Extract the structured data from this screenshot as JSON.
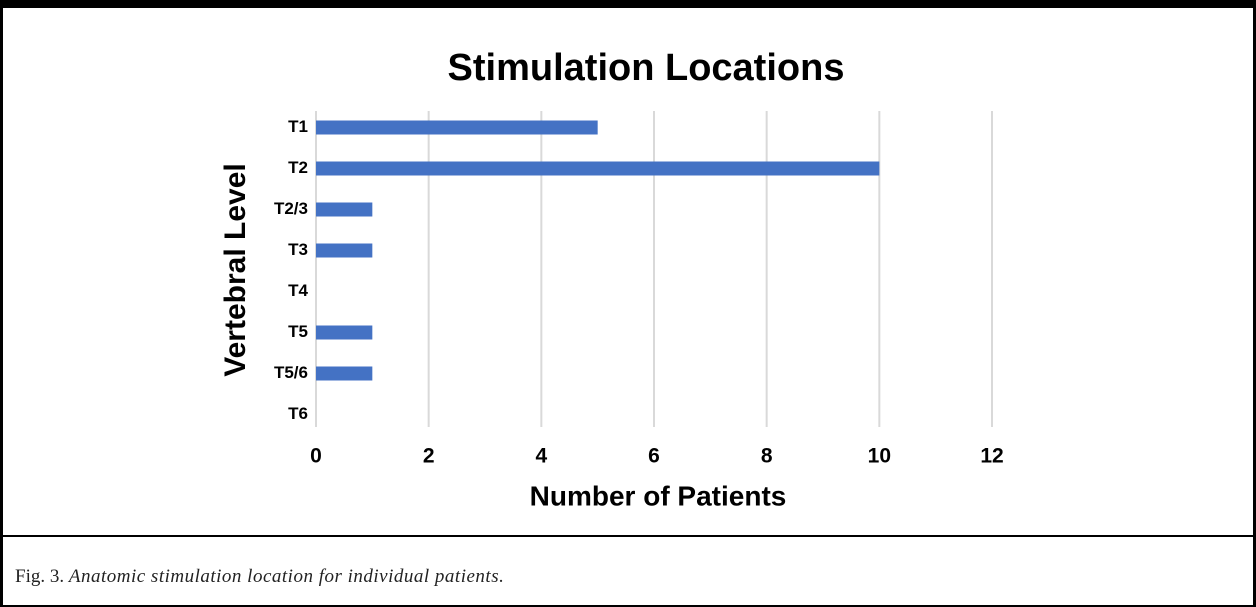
{
  "chart_data": {
    "type": "bar",
    "orientation": "horizontal",
    "title": "Stimulation Locations",
    "xlabel": "Number of Patients",
    "ylabel": "Vertebral Level",
    "categories": [
      "T1",
      "T2",
      "T2/3",
      "T3",
      "T4",
      "T5",
      "T5/6",
      "T6"
    ],
    "values": [
      5,
      10,
      1,
      1,
      0,
      1,
      1,
      0
    ],
    "color": "#4472c4",
    "xlim": [
      0,
      12
    ],
    "xticks": [
      0,
      2,
      4,
      6,
      8,
      10,
      12
    ],
    "grid": true
  },
  "caption": {
    "label": "Fig. 3.",
    "text": "Anatomic stimulation location for individual patients."
  }
}
